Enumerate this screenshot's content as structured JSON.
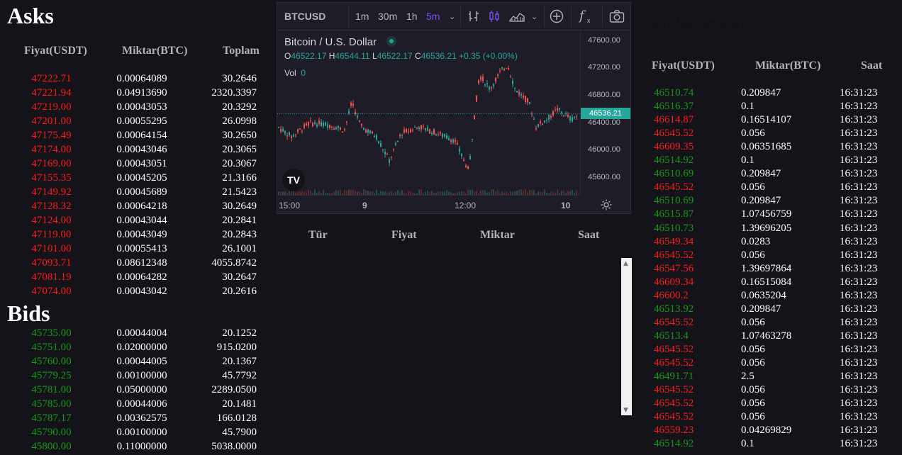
{
  "asks": {
    "title": "Asks",
    "headers": [
      "Fiyat(USDT)",
      "Miktar(BTC)",
      "Toplam"
    ],
    "rows": [
      [
        "47222.71",
        "0.00064089",
        "30.2646"
      ],
      [
        "47221.94",
        "0.04913690",
        "2320.3397"
      ],
      [
        "47219.00",
        "0.00043053",
        "20.3292"
      ],
      [
        "47201.00",
        "0.00055295",
        "26.0998"
      ],
      [
        "47175.49",
        "0.00064154",
        "30.2650"
      ],
      [
        "47174.00",
        "0.00043046",
        "20.3065"
      ],
      [
        "47169.00",
        "0.00043051",
        "20.3067"
      ],
      [
        "47155.35",
        "0.00045205",
        "21.3166"
      ],
      [
        "47149.92",
        "0.00045689",
        "21.5423"
      ],
      [
        "47128.32",
        "0.00064218",
        "30.2649"
      ],
      [
        "47124.00",
        "0.00043044",
        "20.2841"
      ],
      [
        "47119.00",
        "0.00043049",
        "20.2843"
      ],
      [
        "47101.00",
        "0.00055413",
        "26.1001"
      ],
      [
        "47093.71",
        "0.08612348",
        "4055.8742"
      ],
      [
        "47081.19",
        "0.00064282",
        "30.2647"
      ],
      [
        "47074.00",
        "0.00043042",
        "20.2616"
      ]
    ]
  },
  "bids": {
    "title": "Bids",
    "rows": [
      [
        "45735.00",
        "0.00044004",
        "20.1252"
      ],
      [
        "45751.00",
        "0.02000000",
        "915.0200"
      ],
      [
        "45760.00",
        "0.00044005",
        "20.1367"
      ],
      [
        "45779.25",
        "0.00100000",
        "45.7792"
      ],
      [
        "45781.00",
        "0.05000000",
        "2289.0500"
      ],
      [
        "45785.00",
        "0.00044006",
        "20.1481"
      ],
      [
        "45787.17",
        "0.00362575",
        "166.0128"
      ],
      [
        "45790.00",
        "0.00100000",
        "45.7900"
      ],
      [
        "45800.00",
        "0.11000000",
        "5038.0000"
      ]
    ]
  },
  "chart": {
    "symbol": "BTCUSD",
    "intervals": [
      "1m",
      "30m",
      "1h",
      "5m"
    ],
    "active_interval": "5m",
    "fx_label": "f",
    "pair_name": "Bitcoin / U.S. Dollar",
    "ohlc": {
      "o_label": "O",
      "o": "46522.17",
      "h_label": "H",
      "h": "46544.11",
      "l_label": "L",
      "l": "46522.17",
      "c_label": "C",
      "c": "46536.21",
      "change": "+0.35 (+0.00%)"
    },
    "vol_label": "Vol",
    "vol_value": "0",
    "last_price": "46536.21",
    "logo_text": "TV",
    "up_color": "#26a69a",
    "down_color": "#ef5350",
    "accent_color": "#7c4dff"
  },
  "chart_data": {
    "type": "line",
    "ylim": [
      45350,
      47750
    ],
    "yticks": [
      "47600.00",
      "47200.00",
      "46800.00",
      "46400.00",
      "46000.00",
      "45600.00"
    ],
    "xticks": [
      "15:00",
      "9",
      "12:00",
      "10"
    ],
    "last": 46536.21
  },
  "trades_table": {
    "headers": [
      "Tür",
      "Fiyat",
      "Miktar",
      "Saat"
    ]
  },
  "market": {
    "title": "Piyasa Alım Satımları",
    "headers": [
      "Fiyat(USDT)",
      "Miktar(BTC)",
      "Saat"
    ],
    "rows": [
      [
        "46510.74",
        "0.209847",
        "16:31:23",
        "buy"
      ],
      [
        "46516.37",
        "0.1",
        "16:31:23",
        "buy"
      ],
      [
        "46614.87",
        "0.16514107",
        "16:31:23",
        "sell"
      ],
      [
        "46545.52",
        "0.056",
        "16:31:23",
        "sell"
      ],
      [
        "46609.35",
        "0.06351685",
        "16:31:23",
        "sell"
      ],
      [
        "46514.92",
        "0.1",
        "16:31:23",
        "buy"
      ],
      [
        "46510.69",
        "0.209847",
        "16:31:23",
        "buy"
      ],
      [
        "46545.52",
        "0.056",
        "16:31:23",
        "sell"
      ],
      [
        "46510.69",
        "0.209847",
        "16:31:23",
        "buy"
      ],
      [
        "46515.87",
        "1.07456759",
        "16:31:23",
        "buy"
      ],
      [
        "46510.73",
        "1.39696205",
        "16:31:23",
        "buy"
      ],
      [
        "46549.34",
        "0.0283",
        "16:31:23",
        "sell"
      ],
      [
        "46545.52",
        "0.056",
        "16:31:23",
        "sell"
      ],
      [
        "46547.56",
        "1.39697864",
        "16:31:23",
        "sell"
      ],
      [
        "46609.34",
        "0.16515084",
        "16:31:23",
        "sell"
      ],
      [
        "46600.2",
        "0.0635204",
        "16:31:23",
        "sell"
      ],
      [
        "46513.92",
        "0.209847",
        "16:31:23",
        "buy"
      ],
      [
        "46545.52",
        "0.056",
        "16:31:23",
        "sell"
      ],
      [
        "46513.4",
        "1.07463278",
        "16:31:23",
        "buy"
      ],
      [
        "46545.52",
        "0.056",
        "16:31:23",
        "sell"
      ],
      [
        "46545.52",
        "0.056",
        "16:31:23",
        "sell"
      ],
      [
        "46491.71",
        "2.5",
        "16:31:23",
        "buy"
      ],
      [
        "46545.52",
        "0.056",
        "16:31:23",
        "sell"
      ],
      [
        "46545.52",
        "0.056",
        "16:31:23",
        "sell"
      ],
      [
        "46545.52",
        "0.056",
        "16:31:23",
        "sell"
      ],
      [
        "46559.23",
        "0.04269829",
        "16:31:23",
        "sell"
      ],
      [
        "46514.92",
        "0.1",
        "16:31:23",
        "buy"
      ]
    ]
  }
}
